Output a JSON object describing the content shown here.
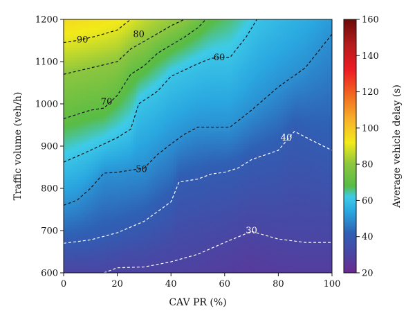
{
  "chart_data": {
    "type": "heatmap",
    "title": "",
    "xlabel": "CAV PR (%)",
    "ylabel": "Traffic volume (veh/h)",
    "colorbar_label": "Average vehicle delay (s)",
    "xlim": [
      0,
      100
    ],
    "ylim": [
      600,
      1200
    ],
    "xticks": [
      "0",
      "20",
      "40",
      "60",
      "80",
      "100"
    ],
    "yticks": [
      "600",
      "700",
      "800",
      "900",
      "1000",
      "1100",
      "1200"
    ],
    "colorbar_range": [
      20,
      160
    ],
    "colorbar_ticks": [
      "20",
      "40",
      "60",
      "80",
      "100",
      "120",
      "140",
      "160"
    ],
    "colorscale": [
      {
        "value": 20,
        "color": "#6b2a8f"
      },
      {
        "value": 30,
        "color": "#4b45a3"
      },
      {
        "value": 42,
        "color": "#2f60b4"
      },
      {
        "value": 54,
        "color": "#2aa8e0"
      },
      {
        "value": 62,
        "color": "#3ecbe8"
      },
      {
        "value": 68,
        "color": "#58bc45"
      },
      {
        "value": 80,
        "color": "#8cc63f"
      },
      {
        "value": 92,
        "color": "#f2ea1a"
      },
      {
        "value": 104,
        "color": "#f7b52b"
      },
      {
        "value": 118,
        "color": "#f26a21"
      },
      {
        "value": 132,
        "color": "#ed1c24"
      },
      {
        "value": 146,
        "color": "#b51c1c"
      },
      {
        "value": 160,
        "color": "#6b0a0a"
      }
    ],
    "contours": [
      {
        "level": 30,
        "label": "30",
        "color": "#ffffff",
        "label_at": [
          70,
          700
        ],
        "points": [
          [
            15,
            600
          ],
          [
            20,
            612
          ],
          [
            30,
            614
          ],
          [
            40,
            626
          ],
          [
            50,
            644
          ],
          [
            60,
            672
          ],
          [
            70,
            698
          ],
          [
            80,
            680
          ],
          [
            90,
            672
          ],
          [
            100,
            672
          ]
        ]
      },
      {
        "level": 40,
        "label": "40",
        "color": "#ffffff",
        "label_at": [
          83,
          920
        ],
        "points": [
          [
            0,
            670
          ],
          [
            10,
            678
          ],
          [
            20,
            695
          ],
          [
            30,
            722
          ],
          [
            40,
            768
          ],
          [
            43,
            815
          ],
          [
            50,
            822
          ],
          [
            55,
            834
          ],
          [
            60,
            838
          ],
          [
            65,
            848
          ],
          [
            70,
            868
          ],
          [
            80,
            890
          ],
          [
            86,
            935
          ],
          [
            92,
            915
          ],
          [
            100,
            890
          ]
        ]
      },
      {
        "level": 50,
        "label": "50",
        "color": "#111111",
        "label_at": [
          29,
          845
        ],
        "points": [
          [
            0,
            760
          ],
          [
            5,
            772
          ],
          [
            10,
            800
          ],
          [
            15,
            836
          ],
          [
            20,
            838
          ],
          [
            30,
            848
          ],
          [
            35,
            880
          ],
          [
            40,
            905
          ],
          [
            45,
            928
          ],
          [
            50,
            945
          ],
          [
            62,
            945
          ],
          [
            70,
            985
          ],
          [
            80,
            1040
          ],
          [
            90,
            1085
          ],
          [
            100,
            1165
          ]
        ]
      },
      {
        "level": 60,
        "label": "60",
        "color": "#111111",
        "label_at": [
          58,
          1110
        ],
        "points": [
          [
            0,
            862
          ],
          [
            10,
            890
          ],
          [
            20,
            920
          ],
          [
            25,
            940
          ],
          [
            28,
            1000
          ],
          [
            35,
            1030
          ],
          [
            40,
            1065
          ],
          [
            50,
            1095
          ],
          [
            55,
            1108
          ],
          [
            62,
            1110
          ],
          [
            68,
            1158
          ],
          [
            72,
            1200
          ]
        ]
      },
      {
        "level": 70,
        "label": "70",
        "color": "#111111",
        "label_at": [
          16,
          1005
        ],
        "points": [
          [
            0,
            965
          ],
          [
            10,
            985
          ],
          [
            15,
            990
          ],
          [
            20,
            1020
          ],
          [
            25,
            1070
          ],
          [
            30,
            1090
          ],
          [
            35,
            1120
          ],
          [
            45,
            1158
          ],
          [
            50,
            1180
          ],
          [
            53,
            1200
          ]
        ]
      },
      {
        "level": 80,
        "label": "80",
        "color": "#111111",
        "label_at": [
          28,
          1165
        ],
        "points": [
          [
            0,
            1070
          ],
          [
            10,
            1085
          ],
          [
            20,
            1100
          ],
          [
            25,
            1130
          ],
          [
            30,
            1148
          ],
          [
            40,
            1185
          ],
          [
            45,
            1200
          ]
        ]
      },
      {
        "level": 90,
        "label": "90",
        "color": "#111111",
        "label_at": [
          7,
          1152
        ],
        "points": [
          [
            0,
            1145
          ],
          [
            5,
            1150
          ],
          [
            12,
            1160
          ],
          [
            20,
            1175
          ],
          [
            25,
            1200
          ]
        ]
      }
    ],
    "grid": false
  }
}
